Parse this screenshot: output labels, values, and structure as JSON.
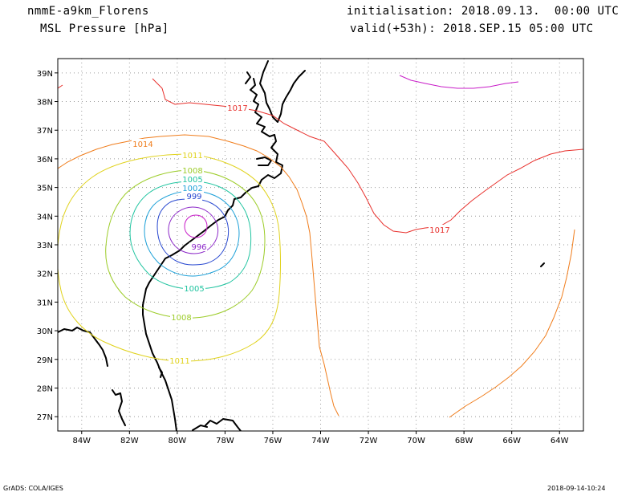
{
  "header": {
    "model": "nmmE-a9km_Florens",
    "field": "MSL Pressure [hPa]",
    "init": "initialisation: 2018.09.13.  00:00 UTC",
    "valid": "valid(+53h): 2018.SEP.15 05:00 UTC"
  },
  "map": {
    "lat_labels": [
      "39N",
      "38N",
      "37N",
      "36N",
      "35N",
      "34N",
      "33N",
      "32N",
      "31N",
      "30N",
      "29N",
      "28N",
      "27N"
    ],
    "lon_labels": [
      "84W",
      "82W",
      "80W",
      "78W",
      "76W",
      "74W",
      "72W",
      "70W",
      "68W",
      "66W",
      "64W"
    ],
    "lon_range": [
      -85,
      -63
    ],
    "lat_range": [
      26.5,
      39.5
    ],
    "grid": true,
    "isobars": [
      {
        "value": "1017",
        "color": "#e8302c"
      },
      {
        "value": "1014",
        "color": "#f07d1c"
      },
      {
        "value": "1011",
        "color": "#e0d21c"
      },
      {
        "value": "1008",
        "color": "#9ccc28"
      },
      {
        "value": "1005",
        "color": "#20c4a0"
      },
      {
        "value": "1002",
        "color": "#1ca0d8"
      },
      {
        "value": "999",
        "color": "#2848d0"
      },
      {
        "value": "996",
        "color": "#8c28c8"
      },
      {
        "value": "",
        "color": "#c81cc8"
      }
    ],
    "centre_label": "996"
  },
  "footer": {
    "left": "GrADS: COLA/IGES",
    "right": "2018-09-14-10:24"
  }
}
